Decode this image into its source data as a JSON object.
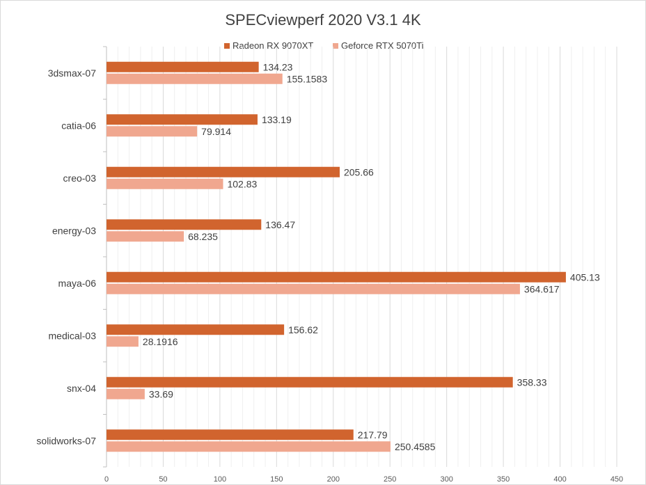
{
  "colors": {
    "series_1": "#d1642e",
    "series_2": "#f0a78f",
    "grid": "#d9d9d9",
    "text": "#404040"
  },
  "chart_data": {
    "type": "bar",
    "orientation": "horizontal",
    "title": "SPECviewperf 2020 V3.1 4K",
    "xlabel": "",
    "ylabel": "",
    "xlim": [
      0,
      450
    ],
    "x_ticks": [
      0,
      50,
      100,
      150,
      200,
      250,
      300,
      350,
      400,
      450
    ],
    "x_tick_labels": [
      "0",
      "50",
      "100",
      "150",
      "200",
      "250",
      "300",
      "350",
      "400",
      "450"
    ],
    "grid": true,
    "legend_position": "top-center",
    "categories": [
      "3dsmax-07",
      "catia-06",
      "creo-03",
      "energy-03",
      "maya-06",
      "medical-03",
      "snx-04",
      "solidworks-07"
    ],
    "series": [
      {
        "name": "Radeon RX 9070XT",
        "color": "#d1642e",
        "values": [
          134.23,
          133.19,
          205.66,
          136.47,
          405.13,
          156.62,
          358.33,
          217.79
        ],
        "labels": [
          "134.23",
          "133.19",
          "205.66",
          "136.47",
          "405.13",
          "156.62",
          "358.33",
          "217.79"
        ]
      },
      {
        "name": "Geforce RTX 5070Ti",
        "color": "#f0a78f",
        "values": [
          155.1583,
          79.914,
          102.83,
          68.235,
          364.617,
          28.1916,
          33.69,
          250.4585
        ],
        "labels": [
          "155.1583",
          "79.914",
          "102.83",
          "68.235",
          "364.617",
          "28.1916",
          "33.69",
          "250.4585"
        ]
      }
    ]
  }
}
